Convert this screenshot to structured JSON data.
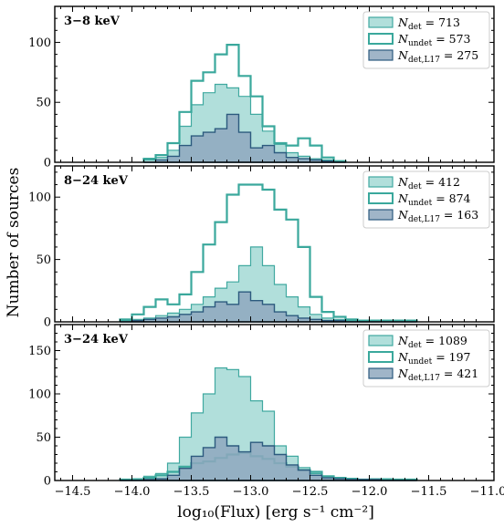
{
  "figure": {
    "ylabel": "Number of sources",
    "xlabel": "log₁₀(Flux) [erg s⁻¹ cm⁻²]",
    "xticks": [
      "−14.5",
      "−14.0",
      "−13.5",
      "−13.0",
      "−12.5",
      "−12.0",
      "−11.5",
      "−11.0"
    ]
  },
  "colors": {
    "det_fill": "#a9dcd7",
    "det_edge": "#40a9a0",
    "undet_edge": "#3aa89c",
    "l17_fill": "#8fa8be",
    "l17_edge": "#2c5a7e"
  },
  "chart_data": [
    {
      "type": "histogram",
      "band": "3−8 keV",
      "xlim": [
        -14.65,
        -10.95
      ],
      "ylim": [
        0,
        130
      ],
      "yticks": [
        0,
        50,
        100
      ],
      "bin_edges": [
        -13.9,
        -13.8,
        -13.7,
        -13.6,
        -13.5,
        -13.4,
        -13.3,
        -13.2,
        -13.1,
        -13.0,
        -12.9,
        -12.8,
        -12.7,
        -12.6,
        -12.5,
        -12.4,
        -12.3,
        -12.2
      ],
      "series": [
        {
          "key": "det",
          "legend": "N_det = 713",
          "style": "filled",
          "values": [
            2,
            4,
            10,
            30,
            48,
            58,
            65,
            62,
            55,
            40,
            26,
            15,
            8,
            5,
            3,
            2,
            1
          ]
        },
        {
          "key": "undet",
          "legend": "N_undet = 573",
          "style": "step",
          "values": [
            3,
            6,
            16,
            42,
            68,
            75,
            90,
            98,
            72,
            55,
            30,
            16,
            14,
            20,
            14,
            4,
            1
          ]
        },
        {
          "key": "l17",
          "legend": "N_det,L17 = 275",
          "style": "filled",
          "values": [
            0,
            2,
            5,
            14,
            22,
            25,
            28,
            40,
            25,
            12,
            14,
            8,
            4,
            3,
            2,
            1,
            0
          ]
        }
      ],
      "legend_position": "upper-right"
    },
    {
      "type": "histogram",
      "band": "8−24 keV",
      "xlim": [
        -14.65,
        -10.95
      ],
      "ylim": [
        0,
        125
      ],
      "yticks": [
        0,
        50,
        100
      ],
      "bin_edges": [
        -14.1,
        -14.0,
        -13.9,
        -13.8,
        -13.7,
        -13.6,
        -13.5,
        -13.4,
        -13.3,
        -13.2,
        -13.1,
        -13.0,
        -12.9,
        -12.8,
        -12.7,
        -12.6,
        -12.5,
        -12.4,
        -12.3,
        -12.2,
        -12.1,
        -12.0,
        -11.9,
        -11.8,
        -11.7,
        -11.6
      ],
      "series": [
        {
          "key": "det",
          "legend": "N_det = 412",
          "style": "filled",
          "values": [
            1,
            2,
            3,
            5,
            7,
            10,
            14,
            20,
            27,
            32,
            45,
            60,
            45,
            30,
            20,
            12,
            6,
            3,
            2,
            1,
            1,
            1,
            1,
            1,
            1
          ]
        },
        {
          "key": "undet",
          "legend": "N_undet = 874",
          "style": "step",
          "values": [
            2,
            6,
            12,
            18,
            14,
            22,
            40,
            62,
            80,
            102,
            110,
            110,
            106,
            90,
            82,
            60,
            20,
            8,
            4,
            2,
            1,
            1,
            1,
            1,
            1
          ]
        },
        {
          "key": "l17",
          "legend": "N_det,L17 = 163",
          "style": "filled",
          "values": [
            0,
            1,
            2,
            3,
            4,
            6,
            8,
            12,
            16,
            14,
            24,
            17,
            14,
            8,
            5,
            3,
            2,
            1,
            1,
            0,
            0,
            0,
            0,
            0,
            0
          ]
        }
      ],
      "legend_position": "upper-right"
    },
    {
      "type": "histogram",
      "band": "3−24 keV",
      "xlim": [
        -14.65,
        -10.95
      ],
      "ylim": [
        0,
        180
      ],
      "yticks": [
        0,
        50,
        100,
        150
      ],
      "bin_edges": [
        -14.1,
        -14.0,
        -13.9,
        -13.8,
        -13.7,
        -13.6,
        -13.5,
        -13.4,
        -13.3,
        -13.2,
        -13.1,
        -13.0,
        -12.9,
        -12.8,
        -12.7,
        -12.6,
        -12.5,
        -12.4,
        -12.3,
        -12.2,
        -12.1,
        -12.0,
        -11.9,
        -11.8,
        -11.7,
        -11.6
      ],
      "series": [
        {
          "key": "det",
          "legend": "N_det = 1089",
          "style": "filled",
          "values": [
            1,
            2,
            5,
            8,
            20,
            50,
            78,
            100,
            130,
            128,
            120,
            92,
            80,
            40,
            28,
            15,
            8,
            5,
            3,
            2,
            1,
            2,
            2,
            1,
            1
          ]
        },
        {
          "key": "undet",
          "legend": "N_undet = 197",
          "style": "step",
          "values": [
            1,
            1,
            3,
            6,
            10,
            16,
            20,
            22,
            26,
            30,
            32,
            28,
            25,
            20,
            16,
            12,
            10,
            5,
            3,
            2,
            1,
            1,
            1,
            1,
            1
          ]
        },
        {
          "key": "l17",
          "legend": "N_det,L17 = 421",
          "style": "filled",
          "values": [
            0,
            0,
            1,
            2,
            6,
            14,
            28,
            38,
            50,
            40,
            33,
            44,
            40,
            30,
            18,
            12,
            6,
            3,
            2,
            1,
            1,
            1,
            0,
            0,
            0
          ]
        }
      ],
      "legend_position": "upper-right"
    }
  ]
}
